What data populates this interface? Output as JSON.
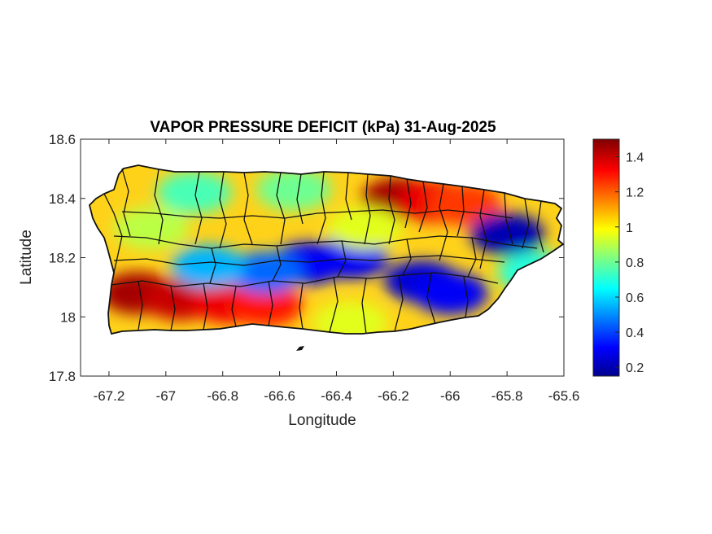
{
  "figure": {
    "title": "VAPOR PRESSURE DEFICIT (kPa) 31-Aug-2025",
    "xlabel": "Longitude",
    "ylabel": "Latitude"
  },
  "chart_data": {
    "type": "heatmap",
    "title": "VAPOR PRESSURE DEFICIT (kPa) 31-Aug-2025",
    "xlabel": "Longitude",
    "ylabel": "Latitude",
    "xlim": [
      -67.3,
      -65.6
    ],
    "ylim": [
      17.8,
      18.6
    ],
    "x_ticks": [
      -67.2,
      -67,
      -66.8,
      -66.6,
      -66.4,
      -66.2,
      -66,
      -65.8,
      -65.6
    ],
    "x_tick_labels": [
      "-67.2",
      "-67",
      "-66.8",
      "-66.6",
      "-66.4",
      "-66.2",
      "-66",
      "-65.8",
      "-65.6"
    ],
    "y_ticks": [
      17.8,
      18,
      18.2,
      18.4,
      18.6
    ],
    "y_tick_labels": [
      "17.8",
      "18",
      "18.2",
      "18.4",
      "18.6"
    ],
    "colorbar": {
      "range": [
        0.15,
        1.5
      ],
      "ticks": [
        0.2,
        0.4,
        0.6,
        0.8,
        1,
        1.2,
        1.4
      ],
      "tick_labels": [
        "0.2",
        "0.4",
        "0.6",
        "0.8",
        "1",
        "1.2",
        "1.4"
      ],
      "colormap": "jet"
    },
    "field_features": [
      {
        "lon": -67.1,
        "lat": 18.08,
        "value": 1.45
      },
      {
        "lon": -66.95,
        "lat": 18.06,
        "value": 1.4
      },
      {
        "lon": -66.78,
        "lat": 18.05,
        "value": 1.35
      },
      {
        "lon": -66.65,
        "lat": 18.04,
        "value": 1.3
      },
      {
        "lon": -66.18,
        "lat": 18.4,
        "value": 1.45
      },
      {
        "lon": -66.05,
        "lat": 18.39,
        "value": 1.35
      },
      {
        "lon": -65.95,
        "lat": 18.38,
        "value": 1.25
      },
      {
        "lon": -66.5,
        "lat": 18.18,
        "value": 0.3
      },
      {
        "lon": -66.35,
        "lat": 18.2,
        "value": 0.3
      },
      {
        "lon": -66.1,
        "lat": 18.12,
        "value": 0.25
      },
      {
        "lon": -66.0,
        "lat": 18.08,
        "value": 0.3
      },
      {
        "lon": -65.8,
        "lat": 18.28,
        "value": 0.2
      },
      {
        "lon": -66.65,
        "lat": 18.15,
        "value": 0.45
      },
      {
        "lon": -66.85,
        "lat": 18.17,
        "value": 0.55
      },
      {
        "lon": -67.05,
        "lat": 18.3,
        "value": 0.9
      },
      {
        "lon": -66.9,
        "lat": 18.42,
        "value": 0.75
      },
      {
        "lon": -66.55,
        "lat": 18.43,
        "value": 0.8
      },
      {
        "lon": -66.3,
        "lat": 18.3,
        "value": 0.95
      },
      {
        "lon": -65.7,
        "lat": 18.15,
        "value": 0.7
      },
      {
        "lon": -66.35,
        "lat": 17.98,
        "value": 0.95
      }
    ]
  }
}
